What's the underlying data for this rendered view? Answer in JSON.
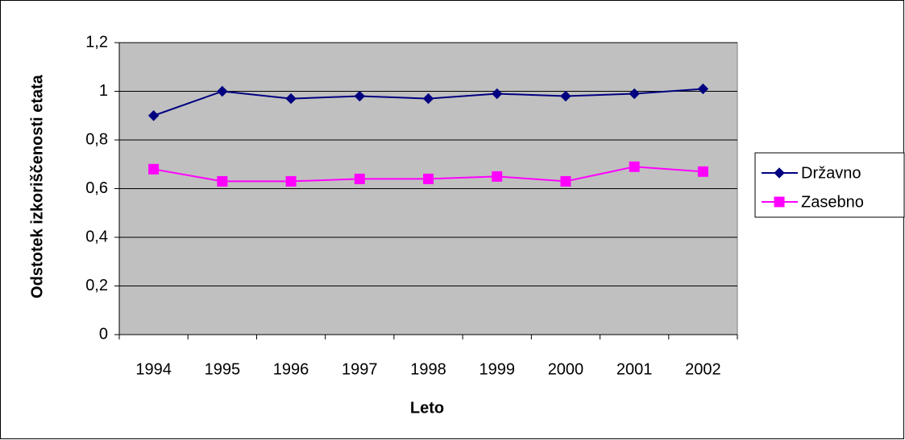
{
  "chart_data": {
    "type": "line",
    "x_label": "Leto",
    "y_label": "Odstotek izkoriščenosti etata",
    "categories": [
      "1994",
      "1995",
      "1996",
      "1997",
      "1998",
      "1999",
      "2000",
      "2001",
      "2002"
    ],
    "series": [
      {
        "name": "Državno",
        "color": "#000080",
        "marker": "diamond",
        "values": [
          0.9,
          1.0,
          0.97,
          0.98,
          0.97,
          0.99,
          0.98,
          0.99,
          1.01
        ]
      },
      {
        "name": "Zasebno",
        "color": "#ff00ff",
        "marker": "square",
        "values": [
          0.68,
          0.63,
          0.63,
          0.64,
          0.64,
          0.65,
          0.63,
          0.69,
          0.67
        ]
      }
    ],
    "ylim": [
      0,
      1.2
    ],
    "yticks": [
      0,
      {
        "value": 0.2,
        "label": "0,2"
      },
      {
        "value": 0.4,
        "label": "0,4"
      },
      {
        "value": 0.6,
        "label": "0,6"
      },
      {
        "value": 0.8,
        "label": "0,8"
      },
      1,
      {
        "value": 1.2,
        "label": "1,2"
      }
    ],
    "grid": true,
    "legend": "right",
    "plot_background": "#c0c0c0"
  }
}
